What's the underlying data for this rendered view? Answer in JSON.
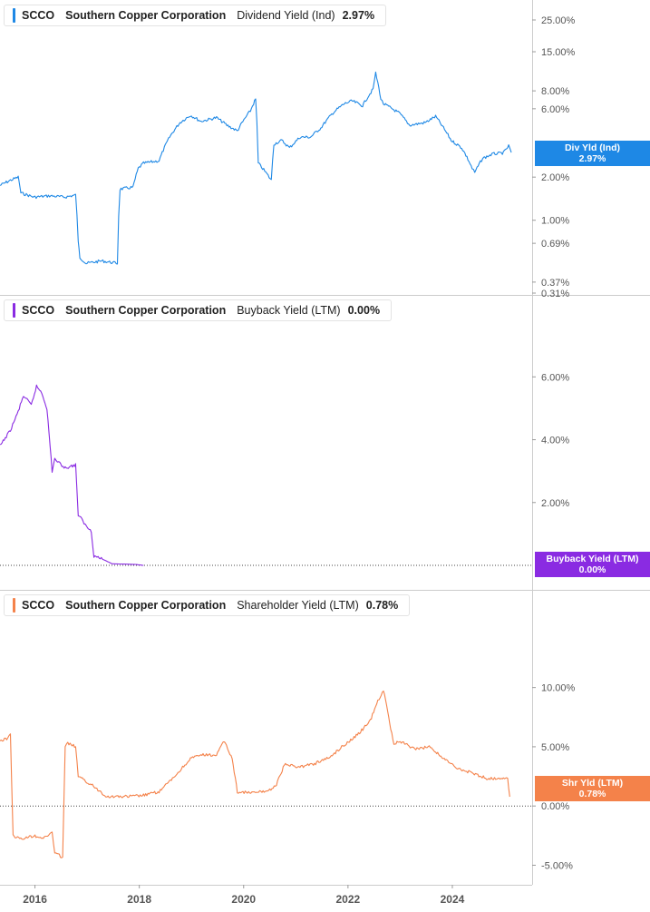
{
  "colors": {
    "dividend": "#1e88e5",
    "buyback": "#8a2be2",
    "shareholder": "#f4824a",
    "axis_text": "#555555",
    "divider": "#cccccc"
  },
  "x_axis": {
    "labels": [
      "2016",
      "2018",
      "2020",
      "2022",
      "2024"
    ],
    "range": [
      2015.35,
      2025.55
    ]
  },
  "panels": [
    {
      "key": "dividend",
      "legend": {
        "ticker": "SCCO",
        "company": "Southern Copper Corporation",
        "metric": "Dividend Yield (Ind)",
        "value": "2.97%"
      },
      "badge": {
        "name": "Div Yld (Ind)",
        "value": "2.97%"
      }
    },
    {
      "key": "buyback",
      "legend": {
        "ticker": "SCCO",
        "company": "Southern Copper Corporation",
        "metric": "Buyback Yield (LTM)",
        "value": "0.00%"
      },
      "badge": {
        "name": "Buyback Yield (LTM)",
        "value": "0.00%"
      }
    },
    {
      "key": "shareholder",
      "legend": {
        "ticker": "SCCO",
        "company": "Southern Copper Corporation",
        "metric": "Shareholder Yield (LTM)",
        "value": "0.78%"
      },
      "badge": {
        "name": "Shr Yld (LTM)",
        "value": "0.78%"
      }
    }
  ],
  "chart_data": [
    {
      "type": "line",
      "title": "SCCO Southern Copper Corporation Dividend Yield (Ind) 2.97%",
      "yscale": "log",
      "ylim": [
        0.31,
        25.0
      ],
      "yticks": [
        "25.00%",
        "15.00%",
        "8.00%",
        "6.00%",
        "2.00%",
        "1.00%",
        "0.69%",
        "0.37%",
        "0.31%"
      ],
      "ytick_values": [
        25,
        15,
        8,
        6,
        2,
        1,
        0.69,
        0.37,
        0.31
      ],
      "series": [
        {
          "name": "Div Yld (Ind)",
          "x": [
            2015.35,
            2015.55,
            2015.7,
            2015.75,
            2016.0,
            2016.3,
            2016.6,
            2016.8,
            2016.85,
            2016.88,
            2017.0,
            2017.3,
            2017.6,
            2017.65,
            2017.9,
            2018.0,
            2018.1,
            2018.4,
            2018.6,
            2018.8,
            2019.0,
            2019.2,
            2019.5,
            2019.7,
            2019.9,
            2020.15,
            2020.25,
            2020.3,
            2020.55,
            2020.6,
            2020.75,
            2020.9,
            2021.1,
            2021.3,
            2021.5,
            2021.75,
            2021.95,
            2022.1,
            2022.3,
            2022.5,
            2022.55,
            2022.65,
            2022.7,
            2022.8,
            2023.0,
            2023.2,
            2023.5,
            2023.7,
            2023.85,
            2024.0,
            2024.2,
            2024.4,
            2024.45,
            2024.6,
            2024.8,
            2025.0,
            2025.1,
            2025.15
          ],
          "y": [
            1.75,
            1.9,
            2.0,
            1.55,
            1.45,
            1.48,
            1.45,
            1.5,
            0.7,
            0.55,
            0.5,
            0.52,
            0.5,
            1.65,
            1.7,
            2.3,
            2.5,
            2.6,
            3.8,
            4.8,
            5.4,
            4.9,
            5.2,
            4.6,
            4.2,
            5.8,
            7.0,
            2.5,
            1.9,
            3.4,
            3.6,
            3.2,
            3.8,
            3.8,
            4.4,
            5.7,
            6.5,
            6.8,
            6.3,
            8.2,
            10.6,
            7.0,
            6.5,
            6.2,
            5.6,
            4.6,
            4.8,
            5.3,
            4.4,
            3.6,
            3.2,
            2.3,
            2.15,
            2.7,
            2.9,
            2.95,
            3.3,
            2.97
          ]
        }
      ]
    },
    {
      "type": "line",
      "title": "SCCO Southern Copper Corporation Buyback Yield (LTM) 0.00%",
      "ylim": [
        0,
        6.5
      ],
      "yticks": [
        "6.00%",
        "4.00%",
        "2.00%"
      ],
      "ytick_values": [
        6,
        4,
        2
      ],
      "series": [
        {
          "name": "Buyback Yield (LTM)",
          "x": [
            2015.35,
            2015.55,
            2015.7,
            2015.8,
            2015.95,
            2016.05,
            2016.15,
            2016.25,
            2016.35,
            2016.4,
            2016.45,
            2016.6,
            2016.8,
            2016.85,
            2016.9,
            2017.0,
            2017.1,
            2017.15,
            2017.25,
            2017.5,
            2017.95,
            2018.1
          ],
          "y": [
            3.8,
            4.3,
            4.9,
            5.4,
            5.1,
            5.7,
            5.5,
            5.0,
            3.0,
            3.4,
            3.3,
            3.1,
            3.2,
            1.6,
            1.5,
            1.25,
            1.1,
            0.3,
            0.25,
            0.05,
            0.03,
            0.0
          ]
        }
      ]
    },
    {
      "type": "line",
      "title": "SCCO Southern Copper Corporation Shareholder Yield (LTM) 0.78%",
      "ylim": [
        -5.5,
        12.5
      ],
      "yticks": [
        "10.00%",
        "5.00%",
        "0.00%",
        "-5.00%"
      ],
      "ytick_values": [
        10,
        5,
        0,
        -5
      ],
      "series": [
        {
          "name": "Shr Yld (LTM)",
          "x": [
            2015.35,
            2015.5,
            2015.55,
            2015.6,
            2015.75,
            2016.0,
            2016.2,
            2016.35,
            2016.4,
            2016.55,
            2016.6,
            2016.65,
            2016.8,
            2016.85,
            2016.95,
            2017.1,
            2017.4,
            2017.8,
            2018.1,
            2018.4,
            2018.7,
            2019.0,
            2019.2,
            2019.5,
            2019.65,
            2019.8,
            2019.9,
            2020.2,
            2020.5,
            2020.65,
            2020.8,
            2021.1,
            2021.4,
            2021.7,
            2021.9,
            2022.2,
            2022.45,
            2022.55,
            2022.7,
            2022.8,
            2022.9,
            2023.0,
            2023.3,
            2023.6,
            2023.8,
            2024.1,
            2024.4,
            2024.7,
            2025.0,
            2025.08,
            2025.12
          ],
          "y": [
            5.5,
            5.7,
            6.2,
            -2.5,
            -2.8,
            -2.5,
            -2.7,
            -2.2,
            -4.0,
            -4.3,
            5.0,
            5.3,
            5.0,
            2.5,
            2.2,
            1.8,
            0.8,
            0.8,
            0.9,
            1.2,
            2.5,
            4.0,
            4.3,
            4.3,
            5.5,
            4.0,
            1.2,
            1.1,
            1.3,
            1.8,
            3.5,
            3.3,
            3.6,
            4.2,
            5.0,
            6.0,
            7.2,
            8.5,
            9.8,
            7.5,
            5.2,
            5.5,
            4.8,
            5.0,
            4.2,
            3.2,
            2.8,
            2.3,
            2.4,
            2.3,
            0.78
          ]
        }
      ]
    }
  ]
}
